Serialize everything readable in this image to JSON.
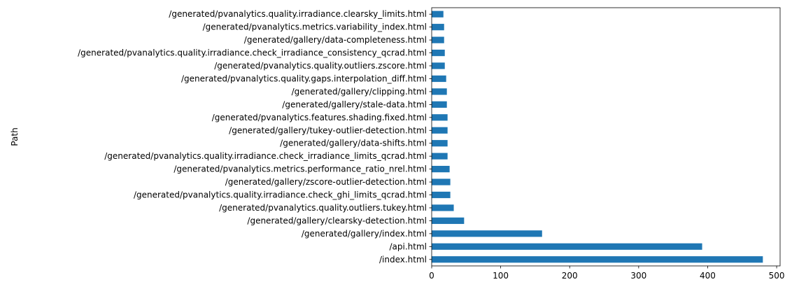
{
  "chart_data": {
    "type": "bar",
    "orientation": "horizontal",
    "ylabel": "Path",
    "xlabel": "",
    "xlim": [
      0,
      505
    ],
    "xticks": [
      0,
      100,
      200,
      300,
      400,
      500
    ],
    "grid": false,
    "legend": "none",
    "bar_color": "#1f77b4",
    "categories": [
      "/index.html",
      "/api.html",
      "/generated/gallery/index.html",
      "/generated/gallery/clearsky-detection.html",
      "/generated/pvanalytics.quality.outliers.tukey.html",
      "/generated/pvanalytics.quality.irradiance.check_ghi_limits_qcrad.html",
      "/generated/gallery/zscore-outlier-detection.html",
      "/generated/pvanalytics.metrics.performance_ratio_nrel.html",
      "/generated/pvanalytics.quality.irradiance.check_irradiance_limits_qcrad.html",
      "/generated/gallery/data-shifts.html",
      "/generated/gallery/tukey-outlier-detection.html",
      "/generated/pvanalytics.features.shading.fixed.html",
      "/generated/gallery/stale-data.html",
      "/generated/gallery/clipping.html",
      "/generated/pvanalytics.quality.gaps.interpolation_diff.html",
      "/generated/pvanalytics.quality.outliers.zscore.html",
      "/generated/pvanalytics.quality.irradiance.check_irradiance_consistency_qcrad.html",
      "/generated/gallery/data-completeness.html",
      "/generated/pvanalytics.metrics.variability_index.html",
      "/generated/pvanalytics.quality.irradiance.clearsky_limits.html"
    ],
    "values": [
      480,
      392,
      160,
      47,
      32,
      27,
      27,
      26,
      23,
      23,
      23,
      23,
      22,
      22,
      21,
      19,
      19,
      18,
      18,
      17
    ]
  }
}
